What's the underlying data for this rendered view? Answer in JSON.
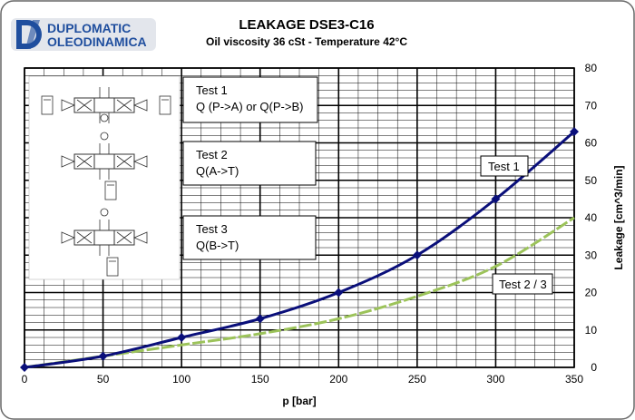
{
  "brand": {
    "line1": "DUPLOMATIC",
    "line2": "OLEODINAMICA",
    "color": "#1f4e9e"
  },
  "chart_data": {
    "type": "line",
    "title": "LEAKAGE DSE3-C16",
    "subtitle": "Oil viscosity 36 cSt - Temperature 42°C",
    "xlabel": "p [bar]",
    "ylabel": "Leakage [cm^3/min]",
    "xlim": [
      0,
      350
    ],
    "ylim": [
      0,
      80
    ],
    "xticks": [
      0,
      50,
      100,
      150,
      200,
      250,
      300,
      350
    ],
    "yticks": [
      0,
      10,
      20,
      30,
      40,
      50,
      60,
      70,
      80
    ],
    "grid": true,
    "series": [
      {
        "name": "Test 1",
        "color": "#0a0f7a",
        "markers": true,
        "x": [
          0,
          50,
          100,
          150,
          200,
          250,
          300,
          350
        ],
        "y": [
          0,
          3,
          8,
          13,
          20,
          30,
          45,
          63
        ]
      },
      {
        "name": "Test 2 / 3",
        "color": "#9cc35a",
        "markers": false,
        "dashed": true,
        "x": [
          0,
          50,
          100,
          150,
          200,
          250,
          300,
          350
        ],
        "y": [
          0,
          3,
          6,
          9,
          13,
          19,
          27,
          40
        ]
      }
    ],
    "tests": [
      {
        "title": "Test 1",
        "desc": "Q (P->A) or Q(P->B)"
      },
      {
        "title": "Test 2",
        "desc": "Q(A->T)"
      },
      {
        "title": "Test 3",
        "desc": "Q(B->T)"
      }
    ]
  }
}
